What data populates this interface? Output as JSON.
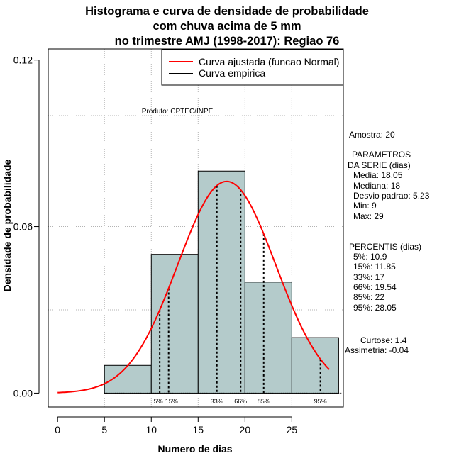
{
  "title_lines": [
    "Histograma e curva de densidade de probabilidade",
    "com chuva acima de 5 mm",
    "no trimestre AMJ (1998-2017): Regiao 76"
  ],
  "legend": {
    "fitted": "Curva ajustada (funcao Normal)",
    "empirical": "Curva empirica"
  },
  "product_note": "Produto: CPTEC/INPE",
  "side_panel": {
    "sample": "Amostra: 20",
    "params_header_1": "PARAMETROS",
    "params_header_2": "DA SERIE (dias)",
    "media": "Media: 18.05",
    "mediana": "Mediana: 18",
    "desvio": "Desvio padrao: 5.23",
    "min": "Min: 9",
    "max": "Max: 29",
    "percentis_header": "PERCENTIS (dias)",
    "p5": "5%: 10.9",
    "p15": "15%: 11.85",
    "p33": "33%: 17",
    "p66": "66%: 19.54",
    "p85": "85%: 22",
    "p95": "95%: 28.05",
    "curtose": "Curtose: 1.4",
    "assimetria": "Assimetria: -0.04"
  },
  "chart_data": {
    "type": "bar",
    "title": "Histograma e curva de densidade de probabilidade com chuva acima de 5 mm no trimestre AMJ (1998-2017): Regiao 76",
    "xlabel": "Numero de dias",
    "ylabel": "Densidade de probabilidade",
    "xlim": [
      -1,
      30.5
    ],
    "ylim": [
      -0.005,
      0.124
    ],
    "x_ticks": [
      0,
      5,
      10,
      15,
      20,
      25
    ],
    "y_ticks": [
      0.0,
      0.06,
      0.12
    ],
    "y_tick_labels": [
      "0.00",
      "0.06",
      "0.12"
    ],
    "grid": true,
    "histogram": {
      "bins": [
        [
          5,
          10
        ],
        [
          10,
          15
        ],
        [
          15,
          20
        ],
        [
          20,
          25
        ],
        [
          25,
          30
        ]
      ],
      "densities": [
        0.01,
        0.05,
        0.08,
        0.04,
        0.02
      ],
      "color": "#b4cbcb"
    },
    "normal_fit": {
      "mean": 18.05,
      "sd": 5.23,
      "x_range": [
        0,
        29
      ],
      "color": "#ff0000"
    },
    "percentiles": [
      {
        "label": "5%",
        "value": 10.9
      },
      {
        "label": "15%",
        "value": 11.85
      },
      {
        "label": "33%",
        "value": 17
      },
      {
        "label": "66%",
        "value": 19.54
      },
      {
        "label": "85%",
        "value": 22
      },
      {
        "label": "95%",
        "value": 28.05
      }
    ]
  }
}
